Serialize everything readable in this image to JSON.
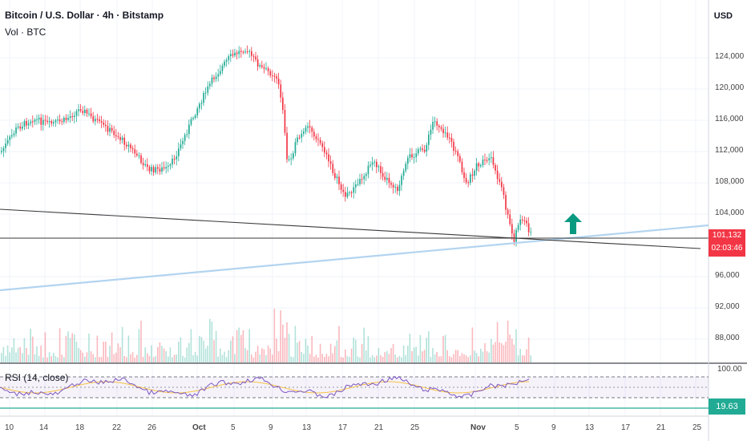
{
  "header": {
    "title": "Bitcoin / U.S. Dollar · 4h · Bitstamp",
    "volume_label": "Vol · BTC",
    "currency": "USD"
  },
  "price_axis": {
    "ticks": [
      "124,000",
      "120,000",
      "116,000",
      "112,000",
      "108,000",
      "104,000",
      "96,000",
      "92,000",
      "88,000"
    ]
  },
  "last_price": {
    "value": "101,132",
    "countdown": "02:03:46",
    "color": "#f23645"
  },
  "rsi": {
    "label": "RSI (14, close)",
    "upper_tick": "100.00",
    "value": "19.63",
    "color": "#22ab94"
  },
  "time_axis": {
    "ticks": [
      "10",
      "14",
      "18",
      "22",
      "26",
      "Oct",
      "5",
      "9",
      "13",
      "17",
      "21",
      "25",
      "Nov",
      "5",
      "9",
      "13",
      "17",
      "21",
      "25"
    ]
  },
  "drawings": {
    "up_arrow_icon": "up-arrow-icon",
    "up_arrow_color": "#089981"
  },
  "colors": {
    "up": "#22ab94",
    "down": "#f23645",
    "trendline_light": "#b3d4f0",
    "trendline_dark": "#3a3a3a",
    "rsi_line": "#7e57c2",
    "rsi_ma": "#f7c244"
  }
}
